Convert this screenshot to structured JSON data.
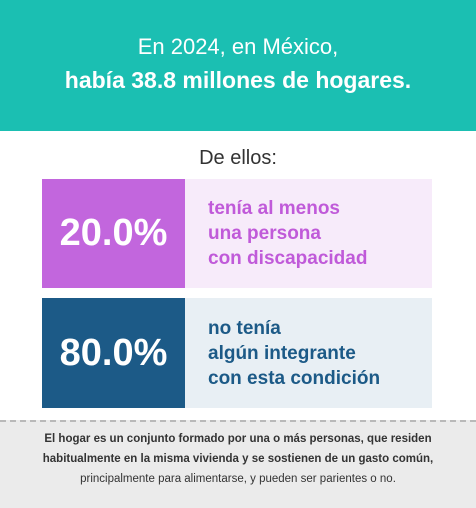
{
  "header": {
    "line1": "En 2024, en México,",
    "line2": "había 38.8 millones de hogares."
  },
  "subtitle": "De ellos:",
  "stats": [
    {
      "value": "20.0%",
      "lines": [
        "tenía al menos",
        "una persona",
        "con discapacidad"
      ],
      "color": "#c266dd",
      "bg_color": "#f7ebfa"
    },
    {
      "value": "80.0%",
      "lines": [
        "no tenía",
        "algún integrante",
        "con esta condición"
      ],
      "color": "#1c5a87",
      "bg_color": "#e8eff4"
    }
  ],
  "footer": {
    "line1": "El hogar es un conjunto formado por una o más personas, que residen",
    "line2": "habitualmente en la misma vivienda y se sostienen de un gasto común,",
    "line3": "principalmente para alimentarse, y pueden ser parientes o no."
  }
}
